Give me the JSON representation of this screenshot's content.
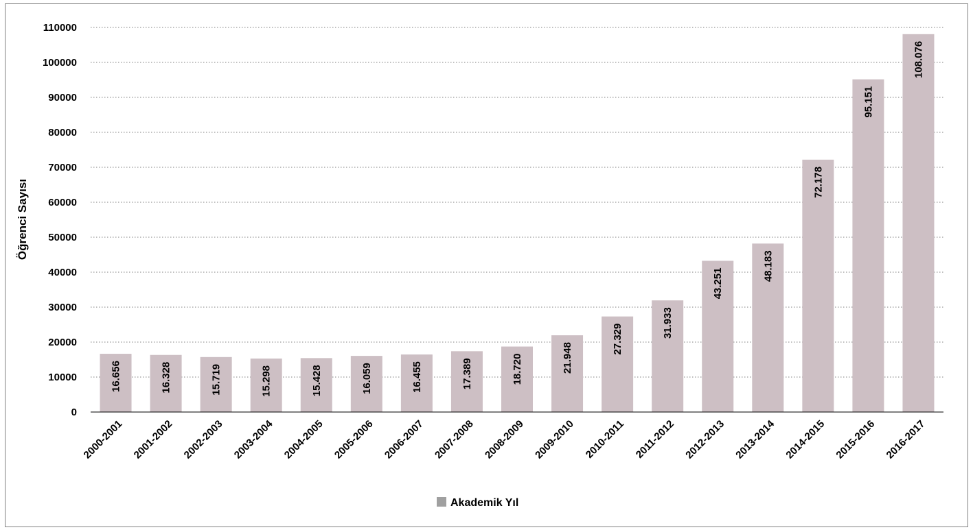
{
  "chart_data": {
    "type": "bar",
    "categories": [
      "2000-2001",
      "2001-2002",
      "2002-2003",
      "2003-2004",
      "2004-2005",
      "2005-2006",
      "2006-2007",
      "2007-2008",
      "2008-2009",
      "2009-2010",
      "2010-2011",
      "2011-2012",
      "2012-2013",
      "2013-2014",
      "2014-2015",
      "2015-2016",
      "2016-2017"
    ],
    "series": [
      {
        "name": "Akademik Yıl",
        "values": [
          16656,
          16328,
          15719,
          15298,
          15428,
          16059,
          16455,
          17389,
          18720,
          21948,
          27329,
          31933,
          43251,
          48183,
          72178,
          95151,
          108076
        ],
        "labels": [
          "16.656",
          "16.328",
          "15.719",
          "15.298",
          "15.428",
          "16.059",
          "16.455",
          "17.389",
          "18.720",
          "21.948",
          "27.329",
          "31.933",
          "43.251",
          "48.183",
          "72.178",
          "95.151",
          "108.076"
        ]
      }
    ],
    "ylabel": "Öğrenci Sayısı",
    "ylim": [
      0,
      110000
    ],
    "yticks": [
      0,
      10000,
      20000,
      30000,
      40000,
      50000,
      60000,
      70000,
      80000,
      90000,
      100000,
      110000
    ],
    "grid": true,
    "legend_position": "bottom",
    "colors": {
      "bar": "#cdbfc4",
      "legend_marker": "#a0a0a0",
      "grid": "#7f7f7f",
      "axis": "#000000"
    }
  }
}
